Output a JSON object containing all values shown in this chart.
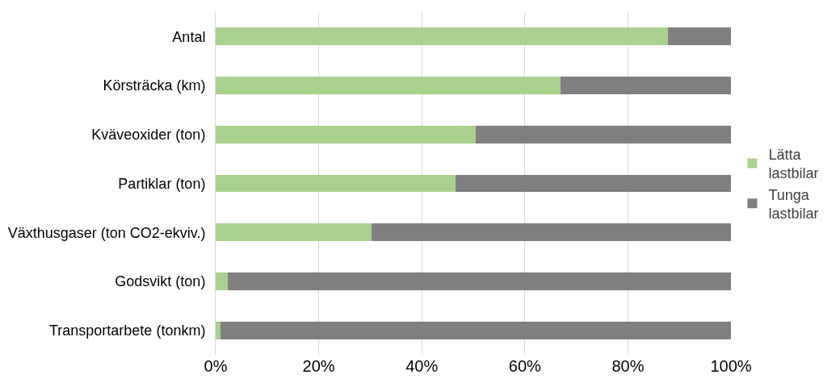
{
  "chart_data": {
    "type": "bar",
    "orientation": "horizontal",
    "stacked": true,
    "categories": [
      "Antal",
      "Körsträcka (km)",
      "Kväveoxider (ton)",
      "Partiklar (ton)",
      "Växthusgaser (ton CO2-ekviv.)",
      "Godsvikt (ton)",
      "Transportarbete (tonkm)"
    ],
    "series": [
      {
        "name": "Lätta lastbilar",
        "color": "#a9d18e",
        "values": [
          87.7,
          66.9,
          50.4,
          46.5,
          30.2,
          2.3,
          1.0
        ]
      },
      {
        "name": "Tunga lastbilar",
        "color": "#7f7f7f",
        "values": [
          12.3,
          33.1,
          49.6,
          53.5,
          69.8,
          97.7,
          99.0
        ]
      }
    ],
    "xlim": [
      0,
      100
    ],
    "xticks": [
      {
        "value": 0,
        "label": "0%"
      },
      {
        "value": 20,
        "label": "20%"
      },
      {
        "value": 40,
        "label": "40%"
      },
      {
        "value": 60,
        "label": "60%"
      },
      {
        "value": 80,
        "label": "80%"
      },
      {
        "value": 100,
        "label": "100%"
      }
    ],
    "grid": "x",
    "legend": "right"
  }
}
